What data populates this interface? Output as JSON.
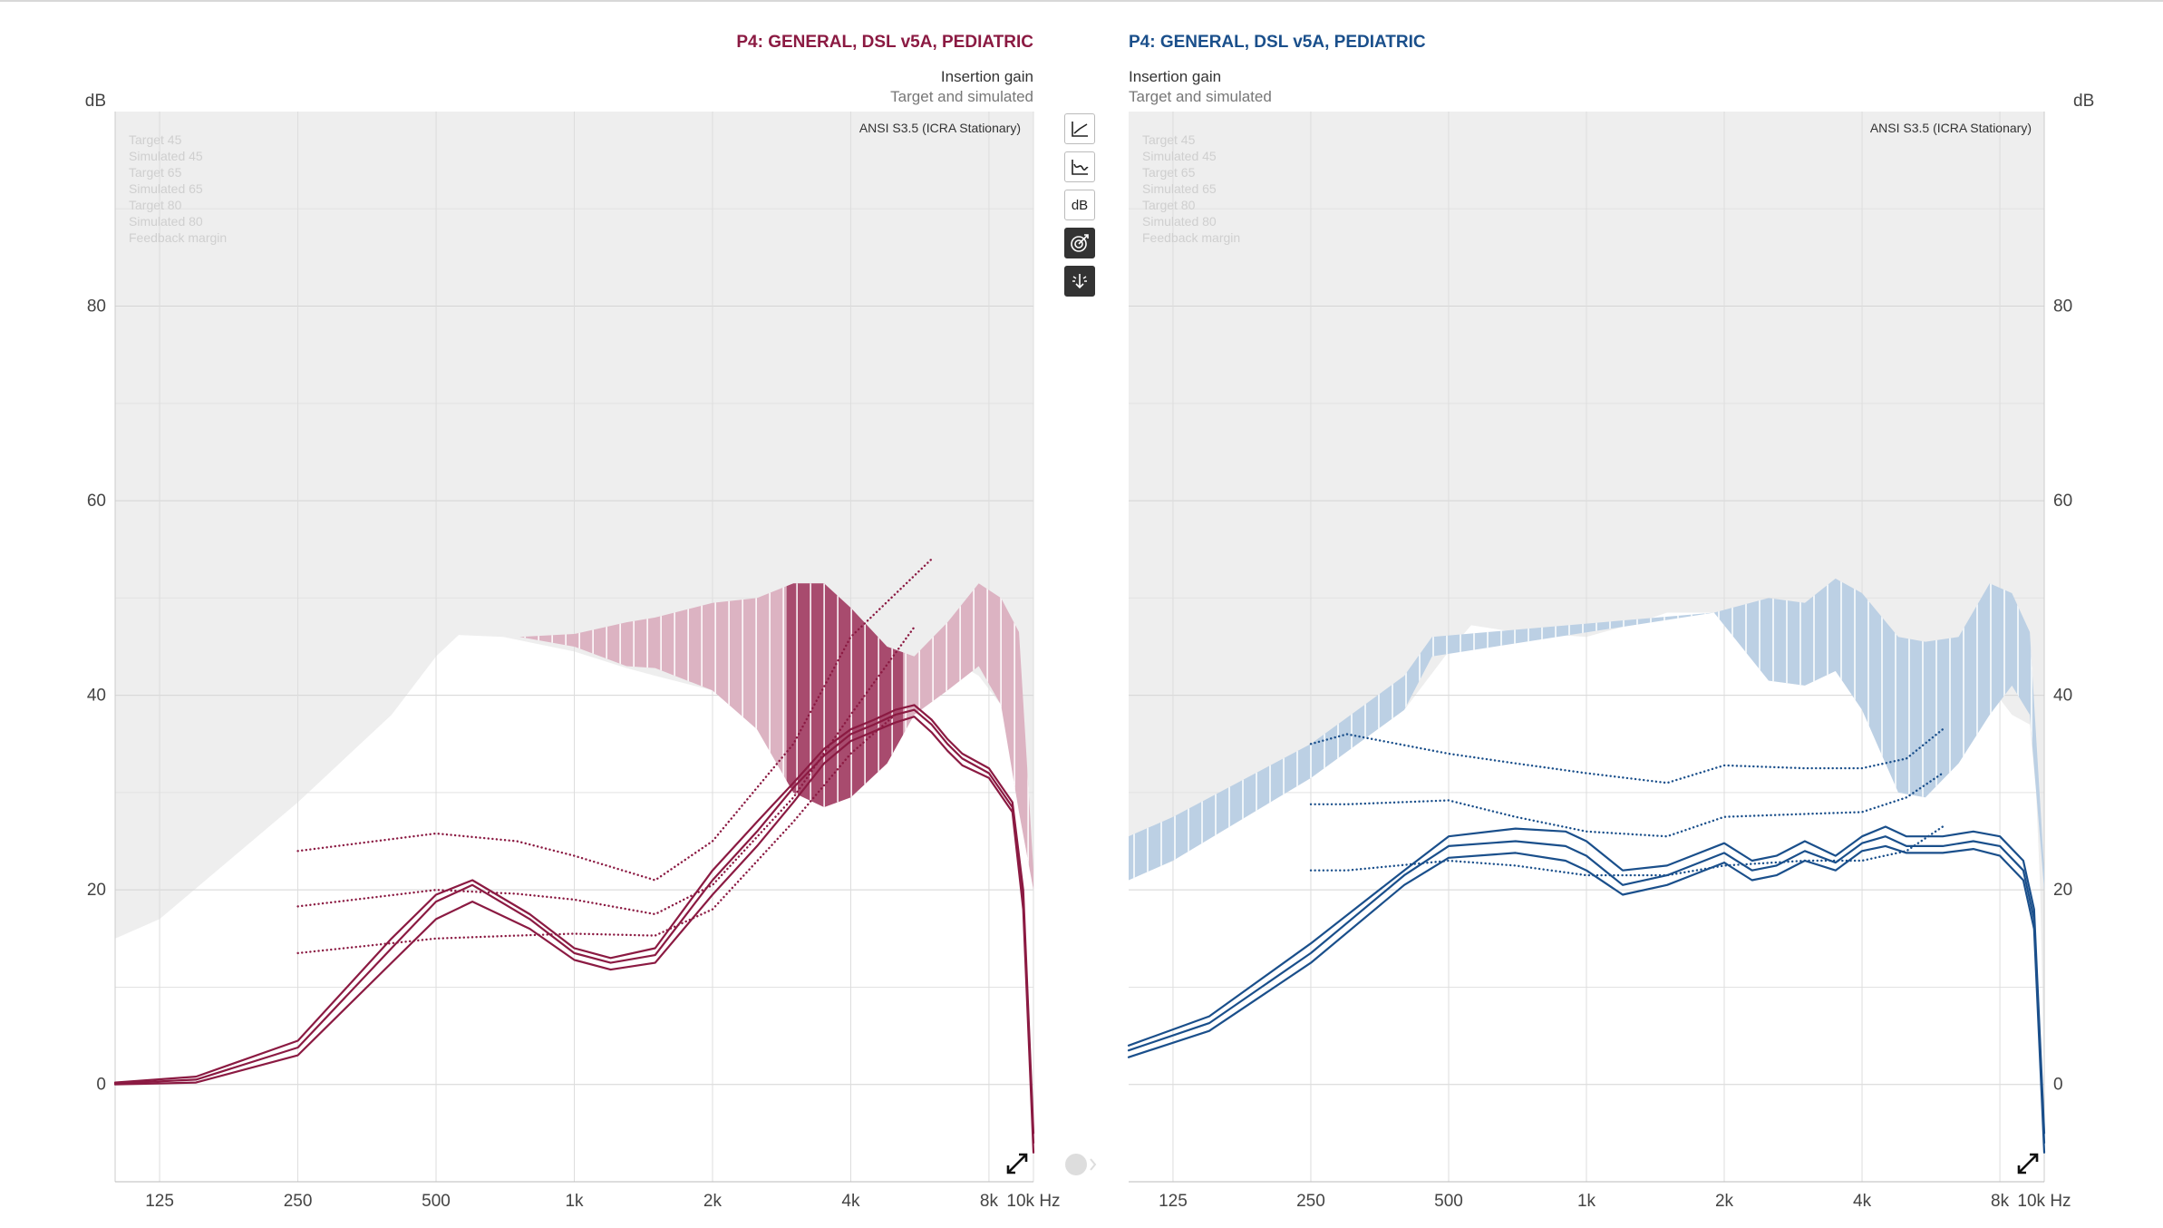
{
  "left_panel": {
    "title": "P4: GENERAL, DSL v5A, PEDIATRIC",
    "subtitle_line1": "Insertion gain",
    "subtitle_line2": "Target and simulated",
    "standard": "ANSI S3.5 (ICRA Stationary)",
    "y_unit": "dB",
    "legend": [
      "Target 45",
      "Simulated 45",
      "Target 65",
      "Simulated 65",
      "Target 80",
      "Simulated 80",
      "Feedback margin"
    ]
  },
  "right_panel": {
    "title": "P4: GENERAL, DSL v5A, PEDIATRIC",
    "subtitle_line1": "Insertion gain",
    "subtitle_line2": "Target and simulated",
    "standard": "ANSI S3.5 (ICRA Stationary)",
    "y_unit": "dB",
    "legend": [
      "Target 45",
      "Simulated 45",
      "Target 65",
      "Simulated 65",
      "Target 80",
      "Simulated 80",
      "Feedback margin"
    ]
  },
  "toolbar": {
    "db_label": "dB",
    "icons": [
      "curve-type-icon",
      "audiogram-icon",
      "db-icon",
      "target-icon",
      "microphone-direction-icon"
    ]
  },
  "colors": {
    "left": "#8b1a42",
    "right": "#1a4f8b",
    "left_fill": "#dcb3c2",
    "left_fill_dark": "#a84b6e",
    "right_fill": "#bcd0e4",
    "plot_bg": "#eeeeee"
  },
  "chart_data": [
    {
      "type": "line",
      "title": "P4: GENERAL, DSL v5A, PEDIATRIC",
      "xscale": "log",
      "x_ticks": [
        125,
        250,
        500,
        1000,
        2000,
        4000,
        8000,
        10000
      ],
      "x_tick_labels": [
        "125",
        "250",
        "500",
        "1k",
        "2k",
        "4k",
        "8k",
        "10k Hz"
      ],
      "y_ticks": [
        0,
        20,
        40,
        60,
        80
      ],
      "ylim": [
        -10,
        100
      ],
      "xlim": [
        100,
        10000
      ],
      "feedback_margin_upper": {
        "x": [
          100,
          125,
          250,
          400,
          500,
          560,
          700,
          1000,
          1300,
          1500,
          2000,
          2500,
          3000,
          3500,
          4000,
          4800,
          5500,
          6200,
          7000,
          7600,
          8500,
          9300,
          10000
        ],
        "y": [
          15,
          17,
          29,
          38,
          44,
          46.2,
          46,
          44.5,
          42.8,
          42,
          40.5,
          36.5,
          30,
          28.5,
          29.5,
          33,
          38,
          40.5,
          43,
          42,
          39,
          28,
          20
        ]
      },
      "feedback_margin_shaded": {
        "x": [
          760,
          1000,
          1300,
          1500,
          2000,
          2500,
          3000,
          3500,
          4000,
          4800,
          5500,
          6500,
          7600,
          8500,
          9300,
          10000
        ],
        "upper": [
          46,
          46.3,
          47.5,
          48,
          49.5,
          50,
          51.5,
          51.5,
          49,
          45,
          44,
          47.5,
          51.5,
          50,
          46.5,
          22
        ],
        "lower": [
          46,
          45,
          43,
          42.8,
          40.5,
          36.5,
          30,
          28.5,
          29.5,
          33,
          38,
          40.5,
          43,
          39,
          28,
          20
        ]
      },
      "series": [
        {
          "name": "Target 45",
          "style": "dotted",
          "x": [
            250,
            500,
            750,
            1000,
            1500,
            2000,
            3000,
            4000,
            6000
          ],
          "y": [
            24,
            25.8,
            25,
            23.5,
            21,
            25,
            35,
            46,
            54
          ]
        },
        {
          "name": "Target 65",
          "style": "dotted",
          "x": [
            250,
            500,
            750,
            1000,
            1500,
            2000,
            3000,
            4000,
            5500
          ],
          "y": [
            18.3,
            20,
            19.6,
            19,
            17.5,
            20.5,
            29.5,
            38,
            47
          ]
        },
        {
          "name": "Target 80",
          "style": "dotted",
          "x": [
            250,
            500,
            750,
            1000,
            1500,
            2000,
            3000,
            4000,
            5000
          ],
          "y": [
            13.5,
            15,
            15.3,
            15.5,
            15.3,
            18,
            27,
            34,
            38
          ]
        },
        {
          "name": "Simulated 45",
          "style": "solid",
          "x": [
            100,
            150,
            250,
            400,
            500,
            600,
            800,
            1000,
            1200,
            1500,
            2000,
            2500,
            3000,
            3500,
            4000,
            4500,
            5000,
            5500,
            6000,
            6500,
            7000,
            8000,
            9000,
            9500,
            10000
          ],
          "y": [
            0.2,
            0.8,
            4.5,
            15,
            19.5,
            21,
            17.5,
            14,
            13,
            14,
            22,
            27,
            31,
            34.5,
            36.5,
            37.5,
            38.5,
            39,
            37.5,
            35.5,
            34,
            32.5,
            29,
            20,
            -5
          ]
        },
        {
          "name": "Simulated 65",
          "style": "solid",
          "x": [
            100,
            150,
            250,
            400,
            500,
            600,
            800,
            1000,
            1200,
            1500,
            2000,
            2500,
            3000,
            3500,
            4000,
            4500,
            5000,
            5500,
            6000,
            6500,
            7000,
            8000,
            9000,
            9500,
            10000
          ],
          "y": [
            0.1,
            0.5,
            3.8,
            14,
            18.8,
            20.5,
            17,
            13.5,
            12.5,
            13.3,
            21,
            26,
            30.5,
            33.8,
            36,
            37,
            38,
            38.5,
            37,
            35,
            33.5,
            32,
            28.5,
            19,
            -6
          ]
        },
        {
          "name": "Simulated 80",
          "style": "solid",
          "x": [
            100,
            150,
            250,
            400,
            500,
            600,
            800,
            1000,
            1200,
            1500,
            2000,
            2500,
            3000,
            3500,
            4000,
            4500,
            5000,
            5500,
            6000,
            6500,
            7000,
            8000,
            9000,
            9500,
            10000
          ],
          "y": [
            0,
            0.2,
            3,
            12.5,
            17,
            18.8,
            16,
            12.8,
            11.8,
            12.5,
            19.5,
            24.5,
            29,
            33,
            35.3,
            36.3,
            37.2,
            37.8,
            36.2,
            34.3,
            32.8,
            31.5,
            28,
            18,
            -7
          ]
        }
      ]
    },
    {
      "type": "line",
      "title": "P4: GENERAL, DSL v5A, PEDIATRIC",
      "xscale": "log",
      "x_ticks": [
        125,
        250,
        500,
        1000,
        2000,
        4000,
        8000,
        10000
      ],
      "x_tick_labels": [
        "125",
        "250",
        "500",
        "1k",
        "2k",
        "4k",
        "8k",
        "10k Hz"
      ],
      "y_ticks": [
        0,
        20,
        40,
        60,
        80
      ],
      "ylim": [
        -10,
        100
      ],
      "xlim": [
        100,
        10000
      ],
      "feedback_margin_upper": {
        "x": [
          100,
          125,
          250,
          400,
          500,
          560,
          700,
          1000,
          1300,
          1500,
          2000,
          2500,
          3000,
          3500,
          4000,
          4800,
          5500,
          6200,
          7000,
          7600,
          8500,
          9300,
          9600,
          9800,
          10000
        ],
        "y": [
          21,
          23,
          31.5,
          38.5,
          44.5,
          47.2,
          46.5,
          46,
          47.5,
          48.5,
          48.5,
          41.5,
          41,
          42.5,
          38.5,
          30,
          29.5,
          33,
          38,
          41,
          38,
          37,
          30,
          20,
          0
        ]
      },
      "feedback_margin_shaded": {
        "x": [
          100,
          125,
          250,
          400,
          460,
          1900,
          2500,
          3000,
          3500,
          4000,
          4800,
          5500,
          6500,
          7600,
          8500,
          9300,
          10000
        ],
        "upper": [
          25.5,
          27.5,
          35,
          42,
          46,
          48.5,
          50,
          49.5,
          52,
          50.5,
          46,
          45.5,
          46,
          51.5,
          50.5,
          46.5,
          22
        ],
        "lower": [
          21,
          23,
          31.5,
          38.5,
          44,
          48.5,
          41.5,
          41,
          42.5,
          38.5,
          30,
          29.5,
          33,
          38,
          41,
          38,
          20
        ]
      },
      "series": [
        {
          "name": "Target 45",
          "style": "dotted",
          "x": [
            250,
            300,
            500,
            700,
            1000,
            1500,
            2000,
            3000,
            4000,
            5000,
            6000
          ],
          "y": [
            35,
            36,
            34,
            33,
            32,
            31,
            32.8,
            32.5,
            32.5,
            33.5,
            36.5
          ]
        },
        {
          "name": "Target 65",
          "style": "dotted",
          "x": [
            250,
            300,
            500,
            700,
            1000,
            1500,
            2000,
            3000,
            4000,
            5000,
            6000
          ],
          "y": [
            28.8,
            28.8,
            29.2,
            27.5,
            26,
            25.5,
            27.5,
            27.8,
            28,
            29.5,
            32
          ]
        },
        {
          "name": "Target 80",
          "style": "dotted",
          "x": [
            250,
            300,
            500,
            700,
            1000,
            1500,
            2000,
            3000,
            4000,
            5000,
            6000
          ],
          "y": [
            22,
            22,
            23,
            22.5,
            21.5,
            21.5,
            22.5,
            23,
            23,
            24,
            26.5
          ]
        },
        {
          "name": "Simulated 45",
          "style": "solid",
          "x": [
            100,
            150,
            250,
            400,
            500,
            700,
            900,
            1000,
            1200,
            1500,
            1700,
            2000,
            2300,
            2600,
            3000,
            3500,
            4000,
            4500,
            5000,
            6000,
            7000,
            8000,
            9000,
            9500,
            10000
          ],
          "y": [
            4,
            7,
            14.5,
            22,
            25.5,
            26.3,
            26,
            25,
            22,
            22.5,
            23.5,
            24.8,
            23,
            23.5,
            25,
            23.5,
            25.5,
            26.5,
            25.5,
            25.5,
            26,
            25.5,
            23,
            18,
            -5
          ]
        },
        {
          "name": "Simulated 65",
          "style": "solid",
          "x": [
            100,
            150,
            250,
            400,
            500,
            700,
            900,
            1000,
            1200,
            1500,
            1700,
            2000,
            2300,
            2600,
            3000,
            3500,
            4000,
            4500,
            5000,
            6000,
            7000,
            8000,
            9000,
            9500,
            10000
          ],
          "y": [
            3.5,
            6.3,
            13.5,
            21.5,
            24.5,
            25,
            24.5,
            23.5,
            20.5,
            21.5,
            22.5,
            23.8,
            22,
            22.5,
            24,
            22.8,
            24.8,
            25.5,
            24.5,
            24.5,
            25,
            24.5,
            22,
            17,
            -6
          ]
        },
        {
          "name": "Simulated 80",
          "style": "solid",
          "x": [
            100,
            150,
            250,
            400,
            500,
            700,
            900,
            1000,
            1200,
            1500,
            1700,
            2000,
            2300,
            2600,
            3000,
            3500,
            4000,
            4500,
            5000,
            6000,
            7000,
            8000,
            9000,
            9500,
            10000
          ],
          "y": [
            2.8,
            5.5,
            12.5,
            20.5,
            23.3,
            23.8,
            23,
            22,
            19.5,
            20.5,
            21.5,
            22.8,
            21,
            21.5,
            23,
            22,
            24,
            24.5,
            23.8,
            23.8,
            24.2,
            23.5,
            21,
            16,
            -7
          ]
        }
      ]
    }
  ]
}
